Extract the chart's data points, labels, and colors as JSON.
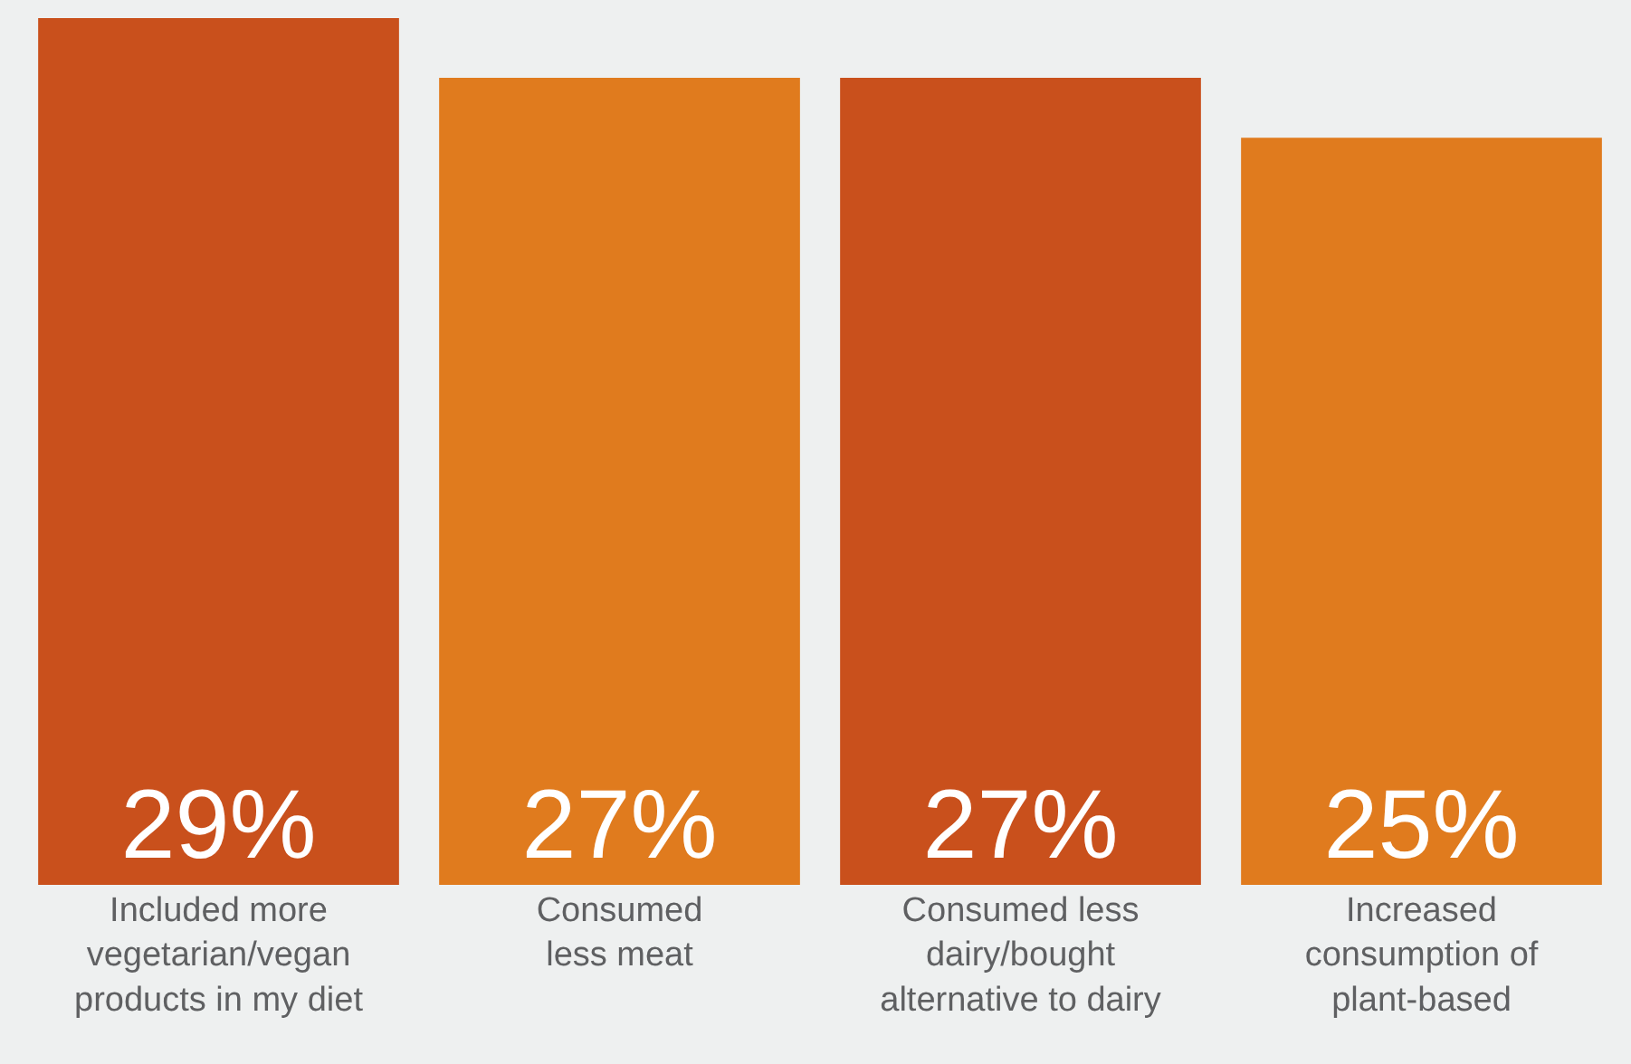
{
  "chart_data": {
    "type": "bar",
    "categories": [
      "Included more\nvegetarian/vegan\nproducts in my diet",
      "Consumed\nless meat",
      "Consumed less\ndairy/bought\nalternative to dairy",
      "Increased\nconsumption of\nplant-based"
    ],
    "values": [
      29,
      27,
      27,
      25
    ],
    "colors": [
      "#c9501c",
      "#e07b1e",
      "#c9501c",
      "#e07b1e"
    ],
    "value_labels": [
      "29%",
      "27%",
      "27%",
      "25%"
    ]
  }
}
